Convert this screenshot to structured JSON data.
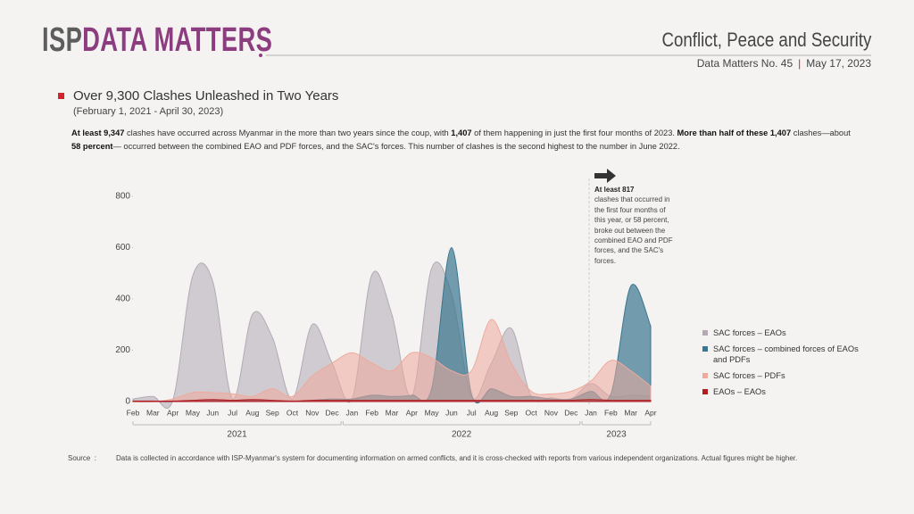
{
  "header": {
    "brand_first": "ISP",
    "brand_second": "DATA MATTERS",
    "section": "Conflict, Peace and Security",
    "issue": "Data Matters No. 45",
    "date": "May 17, 2023"
  },
  "heading": {
    "title": "Over 9,300 Clashes Unleashed in Two Years",
    "period": "(February 1, 2021 - April 30, 2023)"
  },
  "paragraph": [
    {
      "text": "At least 9,347",
      "bold": true
    },
    {
      "text": " clashes have occurred across Myanmar in the more than two years since the coup, with ",
      "bold": false
    },
    {
      "text": "1,407",
      "bold": true
    },
    {
      "text": " of them happening in just the first four months of 2023. ",
      "bold": false
    },
    {
      "text": "More than half of these 1,407",
      "bold": true
    },
    {
      "text": " clashes—about ",
      "bold": false
    },
    {
      "text": "58 percent",
      "bold": true
    },
    {
      "text": "— occurred between the combined EAO and PDF forces, and the SAC's forces. This number of clashes is the second highest to the number in June 2022.",
      "bold": false
    }
  ],
  "chart_data": {
    "type": "area",
    "categories": [
      "Feb",
      "Mar",
      "Apr",
      "May",
      "Jun",
      "Jul",
      "Aug",
      "Sep",
      "Oct",
      "Nov",
      "Dec",
      "Jan",
      "Feb",
      "Mar",
      "Apr",
      "May",
      "Jun",
      "Jul",
      "Aug",
      "Sep",
      "Oct",
      "Nov",
      "Dec",
      "Jan",
      "Feb",
      "Mar",
      "Apr"
    ],
    "year_groups": [
      {
        "label": "2021",
        "months": 11
      },
      {
        "label": "2022",
        "months": 12
      },
      {
        "label": "2023",
        "months": 4
      }
    ],
    "ylim": [
      0,
      800
    ],
    "yticks": [
      0,
      200,
      400,
      600,
      800
    ],
    "legend": "right",
    "series": [
      {
        "name": "SAC forces – EAOs",
        "color": "#b3aab5",
        "values": [
          10,
          20,
          5,
          490,
          470,
          10,
          340,
          250,
          10,
          300,
          150,
          10,
          495,
          340,
          20,
          520,
          420,
          20,
          150,
          285,
          20,
          15,
          10,
          70,
          20,
          25,
          20
        ]
      },
      {
        "name": "SAC forces – combined forces of EAOs and PDFs",
        "color": "#3a7690",
        "values": [
          0,
          0,
          0,
          5,
          5,
          5,
          5,
          5,
          0,
          5,
          10,
          10,
          25,
          20,
          25,
          50,
          600,
          30,
          50,
          20,
          20,
          10,
          10,
          40,
          30,
          450,
          295
        ]
      },
      {
        "name": "SAC forces – PDFs",
        "color": "#eeaa9c",
        "values": [
          0,
          0,
          10,
          35,
          35,
          30,
          20,
          50,
          20,
          100,
          150,
          190,
          150,
          120,
          190,
          170,
          120,
          120,
          320,
          150,
          40,
          30,
          40,
          80,
          160,
          120,
          60
        ]
      },
      {
        "name": "EAOs – EAOs",
        "color": "#b01e23",
        "values": [
          2,
          2,
          2,
          5,
          8,
          5,
          8,
          5,
          2,
          5,
          5,
          5,
          5,
          5,
          5,
          5,
          5,
          5,
          5,
          5,
          5,
          5,
          5,
          8,
          5,
          5,
          5
        ]
      }
    ],
    "annotation": {
      "bold": "At least 817",
      "text": "clashes that occurred in the first four months of this year, or 58 percent, broke out between the combined EAO and PDF forces, and the SAC's forces."
    }
  },
  "source": {
    "label": "Source",
    "text": "Data is collected in accordance with ISP-Myanmar's system for documenting information on armed conflicts, and it is cross-checked with reports from various independent organizations. Actual figures might be higher."
  }
}
